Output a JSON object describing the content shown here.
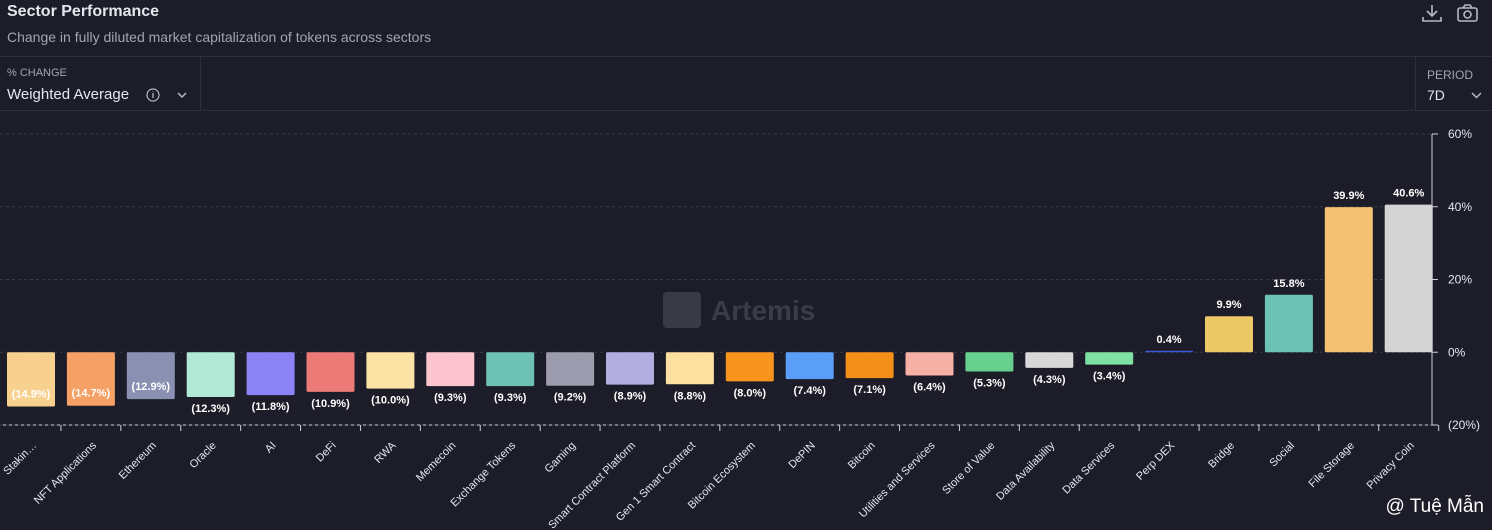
{
  "header": {
    "title": "Sector Performance",
    "subtitle": "Change in fully diluted market capitalization of tokens across sectors"
  },
  "controls": {
    "metric_label": "% CHANGE",
    "metric_value": "Weighted Average",
    "period_label": "PERIOD",
    "period_value": "7D"
  },
  "watermark": "Artemis",
  "credit": "@ Tuệ Mẫn",
  "chart_data": {
    "type": "bar",
    "categories": [
      "Stakin…",
      "NFT Applications",
      "Ethereum",
      "Oracle",
      "AI",
      "DeFi",
      "RWA",
      "Memecoin",
      "Exchange Tokens",
      "Gaming",
      "Smart Contract Platform",
      "Gen 1 Smart Contract",
      "Bitcoin Ecosystem",
      "DePIN",
      "Bitcoin",
      "Utilities and Services",
      "Store of Value",
      "Data Availability",
      "Data Services",
      "Perp DEX",
      "Bridge",
      "Social",
      "File Storage",
      "Privacy Coin"
    ],
    "values": [
      -14.9,
      -14.7,
      -12.9,
      -12.3,
      -11.8,
      -10.9,
      -10.0,
      -9.3,
      -9.3,
      -9.2,
      -8.9,
      -8.8,
      -8.0,
      -7.4,
      -7.1,
      -6.4,
      -5.3,
      -4.3,
      -3.4,
      0.4,
      9.9,
      15.8,
      39.9,
      40.6
    ],
    "value_labels": [
      "(14.9%)",
      "(14.7%)",
      "(12.9%)",
      "(12.3%)",
      "(11.8%)",
      "(10.9%)",
      "(10.0%)",
      "(9.3%)",
      "(9.3%)",
      "(9.2%)",
      "(8.9%)",
      "(8.8%)",
      "(8.0%)",
      "(7.4%)",
      "(7.1%)",
      "(6.4%)",
      "(5.3%)",
      "(4.3%)",
      "(3.4%)",
      "0.4%",
      "9.9%",
      "15.8%",
      "39.9%",
      "40.6%"
    ],
    "colors": [
      "#f8d18f",
      "#f5a065",
      "#8990b2",
      "#b2e9d6",
      "#8a82f5",
      "#ec7b77",
      "#fde2a6",
      "#fbc4cf",
      "#6dc2b5",
      "#9d9cae",
      "#b2aee0",
      "#fde0a0",
      "#f7941d",
      "#5a9ef7",
      "#f39019",
      "#f7b0a5",
      "#67d08f",
      "#d8d8d8",
      "#7ee0a2",
      "#3b5bdb",
      "#edc867",
      "#6cc2b5",
      "#f4c172",
      "#d4d4d4"
    ],
    "ylim": [
      -20,
      60
    ],
    "yticks": [
      {
        "value": -20,
        "label": "(20%)"
      },
      {
        "value": 0,
        "label": "0%"
      },
      {
        "value": 20,
        "label": "20%"
      },
      {
        "value": 40,
        "label": "40%"
      },
      {
        "value": 60,
        "label": "60%"
      }
    ],
    "grid": true
  }
}
